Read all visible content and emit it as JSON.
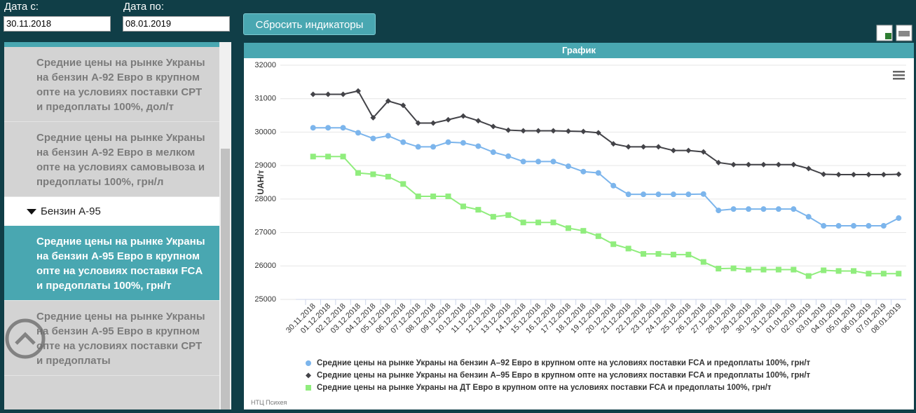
{
  "filters": {
    "date_from_label": "Дата с:",
    "date_from": "30.11.2018",
    "date_to_label": "Дата по:",
    "date_to": "08.01.2019"
  },
  "reset_button": "Сбросить индикаторы",
  "sidebar": {
    "items": [
      {
        "text": "Средние цены на рынке Украны на бензин А-92 Евро в крупном опте на условиях поставки СРТ и предоплаты 100%, дол/т"
      },
      {
        "text": "Средние цены на рынке Украны на бензин А-92 Евро в мелком опте на условиях самовывоза и предоплаты 100%, грн/л"
      },
      {
        "group": "Бензин А-95"
      },
      {
        "text": "Средние цены на рынке Украны на бензин А-95 Евро в крупном опте на условиях поставки FCA и предоплаты 100%, грн/т"
      },
      {
        "text": "Средние цены на рынке Украны на бензин А-95 Евро в крупном опте на условиях поставки СРТ и предоплаты"
      }
    ]
  },
  "panel_title": "График",
  "credit": "НТЦ Психея",
  "chart_data": {
    "type": "line",
    "y_label": "UAH/т",
    "categories": [
      "30.11.2018",
      "01.12.2018",
      "02.12.2018",
      "03.12.2018",
      "04.12.2018",
      "05.12.2018",
      "06.12.2018",
      "07.12.2018",
      "08.12.2018",
      "09.12.2018",
      "10.12.2018",
      "11.12.2018",
      "12.12.2018",
      "13.12.2018",
      "14.12.2018",
      "15.12.2018",
      "16.12.2018",
      "17.12.2018",
      "18.12.2018",
      "19.12.2018",
      "20.12.2018",
      "21.12.2018",
      "22.12.2018",
      "23.12.2018",
      "24.12.2018",
      "25.12.2018",
      "26.12.2018",
      "27.12.2018",
      "28.12.2018",
      "29.12.2018",
      "30.12.2018",
      "31.12.2018",
      "01.01.2019",
      "02.01.2019",
      "03.01.2019",
      "04.01.2019",
      "05.01.2019",
      "06.01.2019",
      "07.01.2019",
      "08.01.2019"
    ],
    "series": [
      {
        "name": "Средние цены на рынке Украны на бензин А–92 Евро в крупном опте на условиях поставки FCA и предоплаты 100%, грн/т",
        "color": "#7cb5ec",
        "marker": "circle",
        "values": [
          30130,
          30130,
          30130,
          29980,
          29810,
          29890,
          29700,
          29560,
          29560,
          29700,
          29680,
          29580,
          29400,
          29280,
          29120,
          29120,
          29120,
          28980,
          28820,
          28780,
          28400,
          28140,
          28140,
          28140,
          28140,
          28140,
          28150,
          27660,
          27700,
          27700,
          27700,
          27700,
          27700,
          27470,
          27200,
          27200,
          27200,
          27200,
          27200,
          27430
        ]
      },
      {
        "name": "Средние цены на рынке Украны на бензин А–95 Евро в крупном опте на условиях поставки FCA и предоплаты 100%, грн/т",
        "color": "#434348",
        "marker": "diamond",
        "values": [
          31130,
          31130,
          31130,
          31230,
          30430,
          30930,
          30800,
          30270,
          30270,
          30370,
          30480,
          30340,
          30170,
          30060,
          30040,
          30040,
          30040,
          30030,
          30020,
          29980,
          29650,
          29560,
          29560,
          29560,
          29450,
          29450,
          29410,
          29090,
          29030,
          29030,
          29030,
          29030,
          29030,
          28910,
          28740,
          28730,
          28730,
          28730,
          28730,
          28740
        ]
      },
      {
        "name": "Средние цены на рынке Украны на ДТ Евро в крупном опте на условиях поставки FCA и предоплаты 100%, грн/т",
        "color": "#90ed7d",
        "marker": "square",
        "values": [
          29270,
          29270,
          29270,
          28780,
          28740,
          28670,
          28450,
          28080,
          28080,
          28080,
          27780,
          27680,
          27470,
          27520,
          27300,
          27300,
          27300,
          27130,
          27050,
          26890,
          26650,
          26520,
          26360,
          26360,
          26340,
          26340,
          26120,
          25920,
          25930,
          25890,
          25890,
          25890,
          25890,
          25700,
          25870,
          25850,
          25850,
          25770,
          25770,
          25770
        ]
      }
    ],
    "ylim": [
      25000,
      32000
    ],
    "yticks": [
      25000,
      26000,
      27000,
      28000,
      29000,
      30000,
      31000,
      32000
    ],
    "grid": true
  }
}
